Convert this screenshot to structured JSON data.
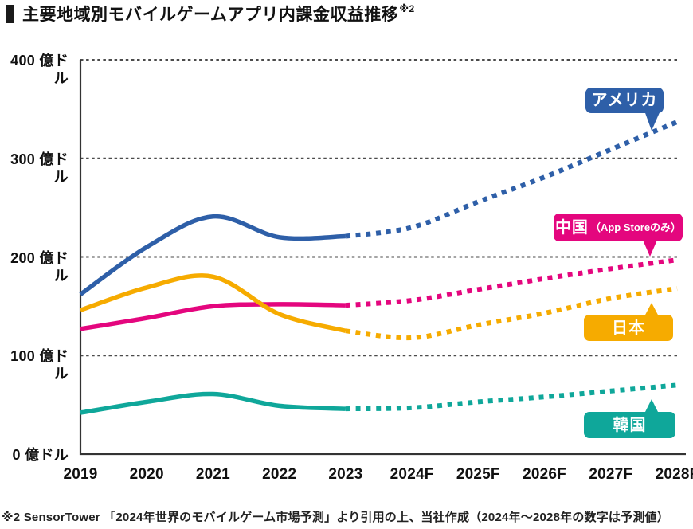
{
  "title": {
    "text": "主要地域別モバイルゲームアプリ内課金収益推移",
    "note_ref": "※2"
  },
  "footnote": "※2 SensorTower 「2024年世界のモバイルゲーム市場予測」より引用の上、当社作成（2024年〜2028年の数字は予測値）",
  "chart_data": {
    "type": "line",
    "title": "主要地域別モバイルゲームアプリ内課金収益推移",
    "unit": "億ドル",
    "x": [
      "2019",
      "2020",
      "2021",
      "2022",
      "2023",
      "2024F",
      "2025F",
      "2026F",
      "2027F",
      "2028F"
    ],
    "y_ticks": [
      "400 億ドル",
      "300 億ドル",
      "200 億ドル",
      "100 億ドル",
      "0 億ドル"
    ],
    "y_tick_values": [
      400,
      300,
      200,
      100,
      0
    ],
    "ylim": [
      0,
      400
    ],
    "grid": "dashed-horizontal",
    "forecast_from": "2023",
    "forecast_style": "dotted",
    "legend_position": "inline-right-callouts",
    "series": [
      {
        "name": "アメリカ",
        "label": "アメリカ",
        "color": "#2e5fa8",
        "values": [
          162,
          210,
          241,
          220,
          221,
          230,
          256,
          281,
          309,
          337
        ]
      },
      {
        "name": "中国（App Storeのみ）",
        "label_main": "中国",
        "label_sub": "（App Storeのみ）",
        "color": "#e4067e",
        "values": [
          127,
          138,
          150,
          152,
          151,
          156,
          167,
          178,
          188,
          197
        ]
      },
      {
        "name": "日本",
        "label": "日本",
        "color": "#f6ab00",
        "values": [
          146,
          169,
          180,
          142,
          125,
          118,
          131,
          143,
          158,
          168
        ]
      },
      {
        "name": "韓国",
        "label": "韓国",
        "color": "#0fa79a",
        "values": [
          42,
          53,
          61,
          49,
          46,
          47,
          53,
          58,
          64,
          70
        ]
      }
    ]
  }
}
